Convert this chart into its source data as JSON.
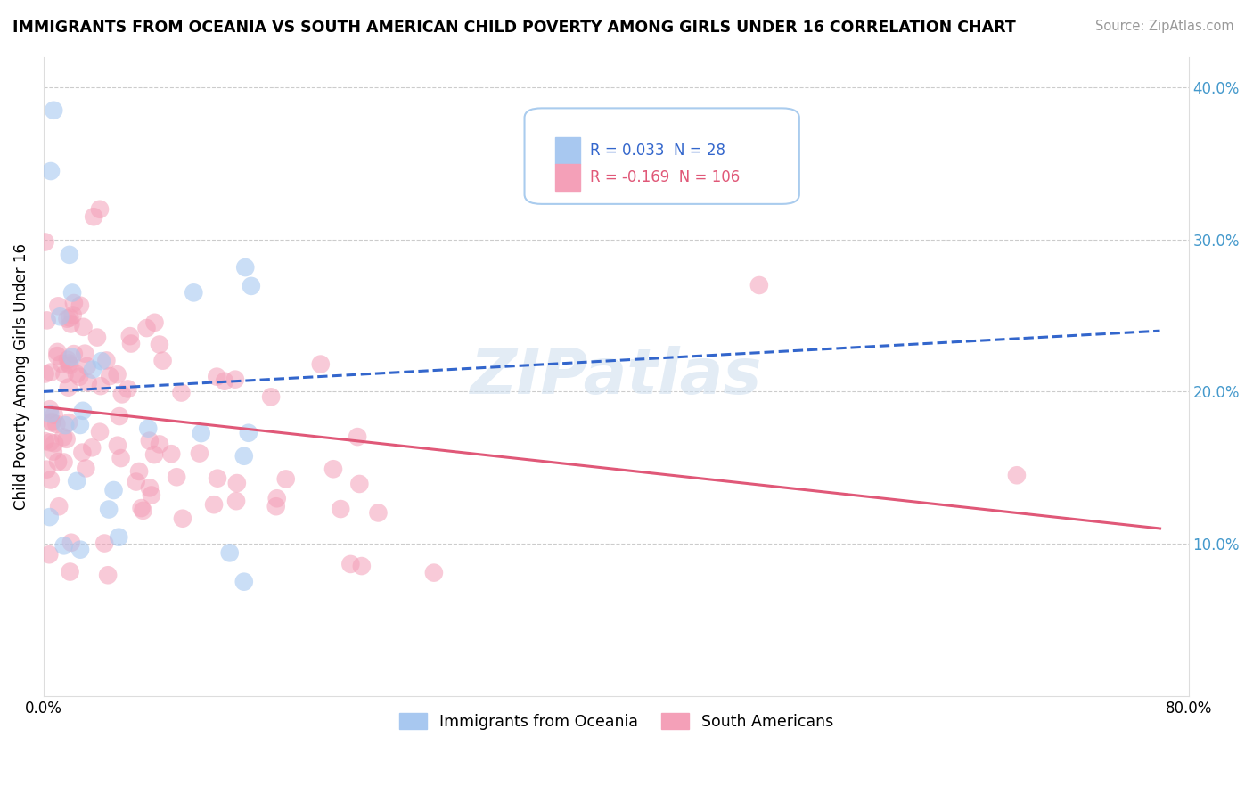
{
  "title": "IMMIGRANTS FROM OCEANIA VS SOUTH AMERICAN CHILD POVERTY AMONG GIRLS UNDER 16 CORRELATION CHART",
  "source": "Source: ZipAtlas.com",
  "ylabel": "Child Poverty Among Girls Under 16",
  "xlim": [
    0.0,
    0.8
  ],
  "ylim": [
    0.0,
    0.42
  ],
  "yticks": [
    0.0,
    0.1,
    0.2,
    0.3,
    0.4
  ],
  "xticks": [
    0.0,
    0.8
  ],
  "legend1_R": "0.033",
  "legend1_N": "28",
  "legend2_R": "-0.169",
  "legend2_N": "106",
  "color_blue": "#A8C8F0",
  "color_pink": "#F4A0B8",
  "line_color_blue": "#3366CC",
  "line_color_pink": "#E05878",
  "watermark_text": "ZIPatlas",
  "legend_label1": "Immigrants from Oceania",
  "legend_label2": "South Americans",
  "right_axis_color": "#4499CC",
  "blue_line_x0": 0.0,
  "blue_line_y0": 0.2,
  "blue_line_x1": 0.78,
  "blue_line_y1": 0.24,
  "pink_line_x0": 0.0,
  "pink_line_y0": 0.19,
  "pink_line_x1": 0.78,
  "pink_line_y1": 0.11
}
